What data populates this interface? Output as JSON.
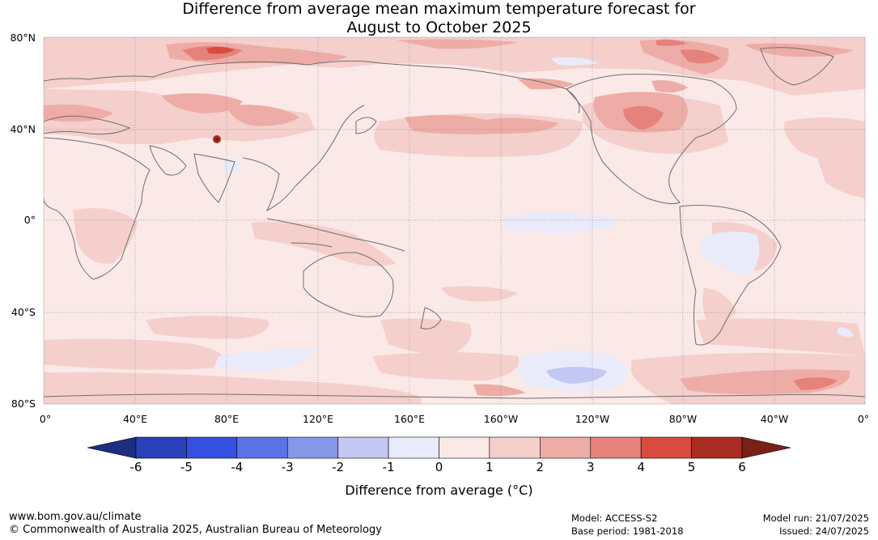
{
  "title": {
    "line1": "Difference from average mean maximum temperature forecast for",
    "line2": "August to October 2025"
  },
  "map": {
    "lat_labels": [
      "80°N",
      "40°N",
      "0°",
      "40°S",
      "80°S"
    ],
    "lon_labels": [
      "0°",
      "40°E",
      "80°E",
      "120°E",
      "160°E",
      "160°W",
      "120°W",
      "80°W",
      "40°W",
      "0°"
    ],
    "colors": {
      "ocean_base": "#fbe9e7",
      "band_1_2": "#f4cfcc",
      "band_2_3": "#eeaca6",
      "band_3_4": "#e5827b",
      "band_4_5": "#da4b3f",
      "band_neg_0": "#e9ebfa",
      "band_neg_1": "#c2c8f3",
      "coast": "#6e6e6e",
      "grid": "#888888"
    }
  },
  "colorbar": {
    "ticks": [
      "-6",
      "-5",
      "-4",
      "-3",
      "-2",
      "-1",
      "0",
      "1",
      "2",
      "3",
      "4",
      "5",
      "6"
    ],
    "colors": [
      "#1c2e80",
      "#2a40b8",
      "#3550e0",
      "#5b73e4",
      "#8797ea",
      "#c2c8f3",
      "#e9ebfa",
      "#fbe9e7",
      "#f4cfcc",
      "#eeaca6",
      "#e5827b",
      "#da4b3f",
      "#aa2d22",
      "#7b1f18"
    ],
    "label": "Difference from average (°C)"
  },
  "footer": {
    "website": "www.bom.gov.au/climate",
    "copyright": "© Commonwealth of Australia 2025, Australian Bureau of Meteorology",
    "model": "Model: ACCESS-S2",
    "base_period": "Base period: 1981-2018",
    "model_run": "Model run: 21/07/2025",
    "issued": "Issued: 24/07/2025"
  }
}
